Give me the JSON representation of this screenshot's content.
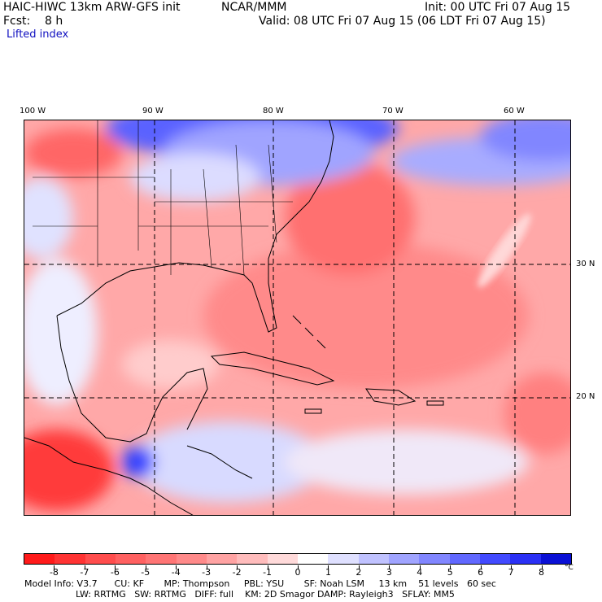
{
  "header": {
    "model": "HAIC-HIWC 13km ARW-GFS init",
    "org": "NCAR/MMM",
    "init": "Init: 00 UTC Fri 07 Aug 15",
    "fcst": "Fcst:    8 h",
    "valid": "Valid: 08 UTC Fri 07 Aug 15 (06 LDT Fri 07 Aug 15)",
    "field": "Lifted index"
  },
  "axes": {
    "lon_labels": [
      "100 W",
      "90 W",
      "80 W",
      "70 W",
      "60 W"
    ],
    "lat_labels": [
      "30 N",
      "20 N"
    ]
  },
  "colorbar": {
    "labels": [
      "-8",
      "-7",
      "-6",
      "-5",
      "-4",
      "-3",
      "-2",
      "-1",
      "0",
      "1",
      "2",
      "3",
      "4",
      "5",
      "6",
      "7",
      "8"
    ],
    "unit": "°C",
    "colors": [
      "#ff1a1a",
      "#ff3333",
      "#ff4d4d",
      "#ff6161",
      "#ff7575",
      "#ff8a8a",
      "#ffa3a3",
      "#ffbcbc",
      "#ffdada",
      "#ffffff",
      "#dfe0ff",
      "#c0c2ff",
      "#a0a4ff",
      "#8186ff",
      "#6168ff",
      "#424aff",
      "#2a30f5",
      "#0a10d5"
    ]
  },
  "footer": {
    "line1": "Model Info: V3.7      CU: KF       MP: Thompson     PBL: YSU       SF: Noah LSM     13 km    51 levels   60 sec",
    "line2": "                  LW: RRTMG   SW: RRTMG   DIFF: full    KM: 2D Smagor DAMP: Rayleigh3   SFLAY: MM5"
  }
}
